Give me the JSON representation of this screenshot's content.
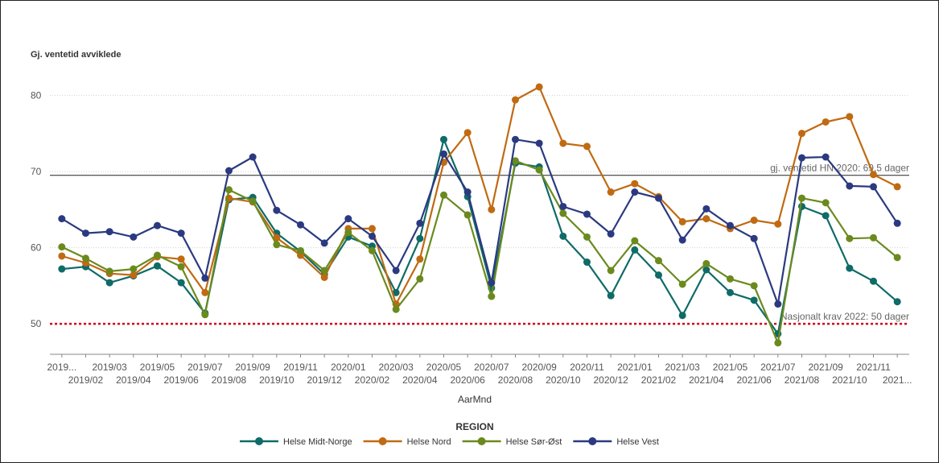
{
  "colors": {
    "Helse Midt-Norge": "#0f6b67",
    "Helse Nord": "#c06a12",
    "Helse Sør-Øst": "#6b8a1e",
    "Helse Vest": "#2b3a80",
    "reference_line": "#222222",
    "target_line": "#d0021b",
    "grid": "#d0d0d0"
  },
  "chart_data": {
    "type": "line",
    "ylabel": "Gj. ventetid avviklede",
    "xlabel": "AarMnd",
    "ylim": [
      46,
      83
    ],
    "yticks": [
      50,
      60,
      70,
      80
    ],
    "grid": true,
    "legend_title": "REGION",
    "legend_placement": "bottom",
    "x": [
      "2019/01",
      "2019/02",
      "2019/03",
      "2019/04",
      "2019/05",
      "2019/06",
      "2019/07",
      "2019/08",
      "2019/09",
      "2019/10",
      "2019/11",
      "2019/12",
      "2020/01",
      "2020/02",
      "2020/03",
      "2020/04",
      "2020/05",
      "2020/06",
      "2020/07",
      "2020/08",
      "2020/09",
      "2020/10",
      "2020/11",
      "2020/12",
      "2021/01",
      "2021/02",
      "2021/03",
      "2021/04",
      "2021/05",
      "2021/06",
      "2021/07",
      "2021/08",
      "2021/09",
      "2021/10",
      "2021/11",
      "2021/12"
    ],
    "x_tick_labels": [
      "2019...",
      "2019/02",
      "2019/03",
      "2019/04",
      "2019/05",
      "2019/06",
      "2019/07",
      "2019/08",
      "2019/09",
      "2019/10",
      "2019/11",
      "2019/12",
      "2020/01",
      "2020/02",
      "2020/03",
      "2020/04",
      "2020/05",
      "2020/06",
      "2020/07",
      "2020/08",
      "2020/09",
      "2020/10",
      "2020/11",
      "2020/12",
      "2021/01",
      "2021/02",
      "2021/03",
      "2021/04",
      "2021/05",
      "2021/06",
      "2021/07",
      "2021/08",
      "2021/09",
      "2021/10",
      "2021/11",
      "2021..."
    ],
    "series": [
      {
        "name": "Helse Midt-Norge",
        "values": [
          57.2,
          57.5,
          55.4,
          56.3,
          57.6,
          55.4,
          51.4,
          66.3,
          66.6,
          61.9,
          59.5,
          56.5,
          61.4,
          60.2,
          54.1,
          61.2,
          74.2,
          66.7,
          54.7,
          71.1,
          70.6,
          61.5,
          58.1,
          53.7,
          59.7,
          56.4,
          51.1,
          57.1,
          54.1,
          53.1,
          48.7,
          65.4,
          64.2,
          57.3,
          55.6,
          52.9
        ]
      },
      {
        "name": "Helse Nord",
        "values": [
          58.9,
          58.0,
          56.6,
          56.4,
          58.8,
          58.5,
          54.1,
          66.5,
          66.0,
          61.3,
          59.0,
          56.1,
          62.5,
          62.5,
          52.6,
          58.5,
          71.2,
          75.1,
          65.0,
          79.4,
          81.1,
          73.7,
          73.3,
          67.3,
          68.4,
          66.7,
          63.4,
          63.8,
          62.5,
          63.6,
          63.1,
          75.0,
          76.5,
          77.2,
          69.6,
          68.0
        ]
      },
      {
        "name": "Helse Sør-Øst",
        "values": [
          60.1,
          58.6,
          56.9,
          57.2,
          59.0,
          57.5,
          51.2,
          67.6,
          66.1,
          60.4,
          59.6,
          57.0,
          62.0,
          59.6,
          51.9,
          55.9,
          66.9,
          64.3,
          53.6,
          71.4,
          70.2,
          64.5,
          61.4,
          57.0,
          60.9,
          58.3,
          55.2,
          57.9,
          55.9,
          55.0,
          47.5,
          66.5,
          65.9,
          61.2,
          61.3,
          58.7
        ]
      },
      {
        "name": "Helse Vest",
        "values": [
          63.8,
          61.9,
          62.1,
          61.4,
          62.9,
          61.9,
          56.0,
          70.1,
          71.9,
          64.9,
          63.0,
          60.6,
          63.8,
          61.5,
          57.0,
          63.2,
          72.3,
          67.3,
          55.4,
          74.2,
          73.7,
          65.4,
          64.4,
          61.8,
          67.3,
          66.5,
          61.0,
          65.1,
          62.9,
          61.2,
          52.6,
          71.8,
          71.9,
          68.1,
          68.0,
          63.2
        ]
      }
    ],
    "reference_lines": [
      {
        "value": 69.5,
        "label": "gj. ventetid HN 2020: 69,5 dager",
        "style": "solid"
      },
      {
        "value": 50,
        "label": "Nasjonalt krav 2022: 50 dager",
        "style": "dotted"
      }
    ]
  }
}
